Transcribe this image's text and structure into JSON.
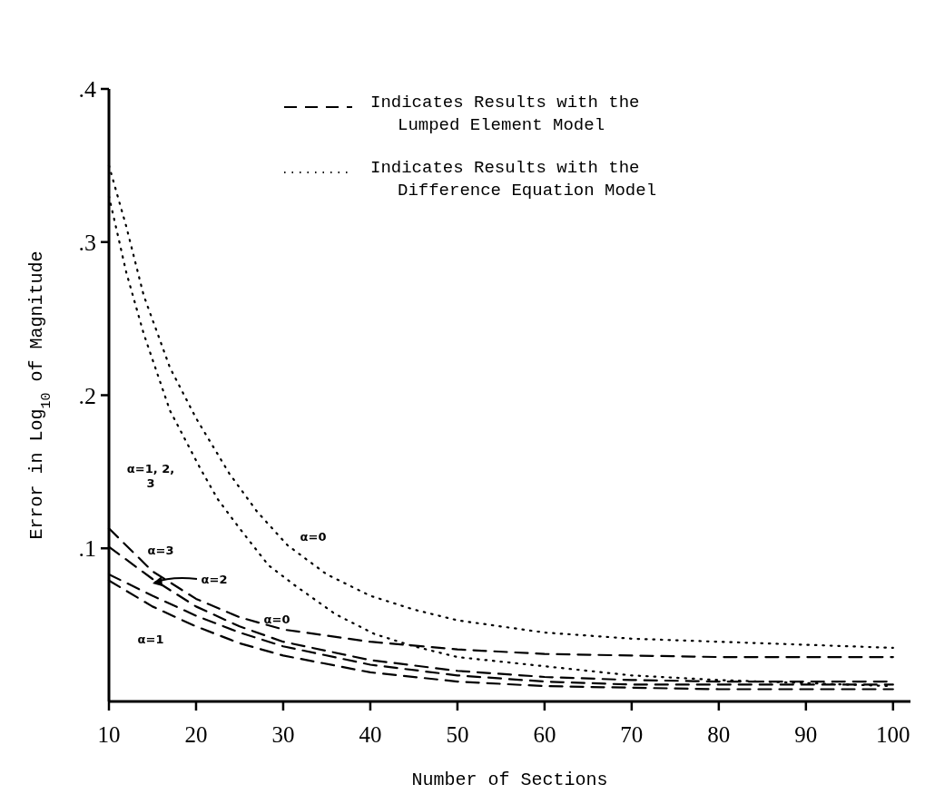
{
  "chart_data": {
    "type": "line",
    "xlabel": "Number of Sections",
    "ylabel": "Error in Log$_{10}$ of Magnitude",
    "xlim": [
      10,
      102
    ],
    "xticks": [
      10,
      20,
      30,
      40,
      50,
      60,
      70,
      80,
      90,
      100
    ],
    "ylim": [
      0,
      0.4
    ],
    "yticks": [
      {
        "value": 0.1,
        "label": ".1"
      },
      {
        "value": 0.2,
        "label": ".2"
      },
      {
        "value": 0.3,
        "label": ".3"
      },
      {
        "value": 0.4,
        "label": ".4"
      }
    ],
    "grid": false,
    "legend": "top right",
    "marker": "none",
    "series": [
      {
        "name": "Indicates Results with the\nLumped Element Model",
        "color": "#000000",
        "line_style": "dashed",
        "x": [
          10,
          15,
          20,
          25,
          30,
          40,
          50,
          60,
          70,
          80,
          90,
          100
        ],
        "values": [
          0.113,
          0.085,
          0.067,
          0.055,
          0.047,
          0.039,
          0.034,
          0.031,
          0.03,
          0.029,
          0.029,
          0.029
        ]
      },
      {
        "color": "#000000",
        "line_style": "dashed",
        "x": [
          10,
          15,
          20,
          25,
          30,
          40,
          50,
          60,
          70,
          80,
          90,
          100
        ],
        "values": [
          0.101,
          0.08,
          0.062,
          0.049,
          0.039,
          0.027,
          0.02,
          0.016,
          0.014,
          0.013,
          0.013,
          0.013
        ]
      },
      {
        "color": "#000000",
        "line_style": "dashed",
        "x": [
          10,
          15,
          20,
          25,
          30,
          40,
          50,
          60,
          70,
          80,
          90,
          100
        ],
        "values": [
          0.083,
          0.069,
          0.056,
          0.045,
          0.036,
          0.024,
          0.017,
          0.013,
          0.011,
          0.011,
          0.011,
          0.011
        ]
      },
      {
        "color": "#000000",
        "line_style": "dashed",
        "x": [
          10,
          15,
          20,
          25,
          30,
          40,
          50,
          60,
          70,
          80,
          90,
          100
        ],
        "values": [
          0.079,
          0.062,
          0.049,
          0.038,
          0.03,
          0.019,
          0.013,
          0.01,
          0.009,
          0.008,
          0.008,
          0.008
        ]
      },
      {
        "name": "Indicates Results with the\nDifference Equation Model",
        "color": "#000000",
        "line_style": "dotted",
        "x": [
          10,
          12,
          14,
          17,
          20,
          23.8,
          27,
          30.5,
          35,
          40,
          45,
          50,
          60,
          70,
          80,
          90,
          100
        ],
        "values": [
          0.35,
          0.31,
          0.265,
          0.218,
          0.185,
          0.149,
          0.124,
          0.102,
          0.083,
          0.069,
          0.06,
          0.053,
          0.045,
          0.041,
          0.039,
          0.037,
          0.035
        ]
      },
      {
        "color": "#000000",
        "line_style": "dotted",
        "x": [
          10,
          12,
          14,
          17,
          20.5,
          22.5,
          25,
          28.3,
          31.3,
          36,
          40.5,
          45,
          50,
          60,
          70,
          80,
          90,
          100
        ],
        "values": [
          0.33,
          0.28,
          0.24,
          0.19,
          0.152,
          0.132,
          0.113,
          0.089,
          0.076,
          0.057,
          0.044,
          0.036,
          0.029,
          0.023,
          0.017,
          0.014,
          0.012,
          0.01
        ]
      }
    ],
    "annotations": [
      "α=1, 2,\n3",
      "α=0",
      "α=3",
      "α=2",
      "α=0",
      "α=1"
    ]
  }
}
